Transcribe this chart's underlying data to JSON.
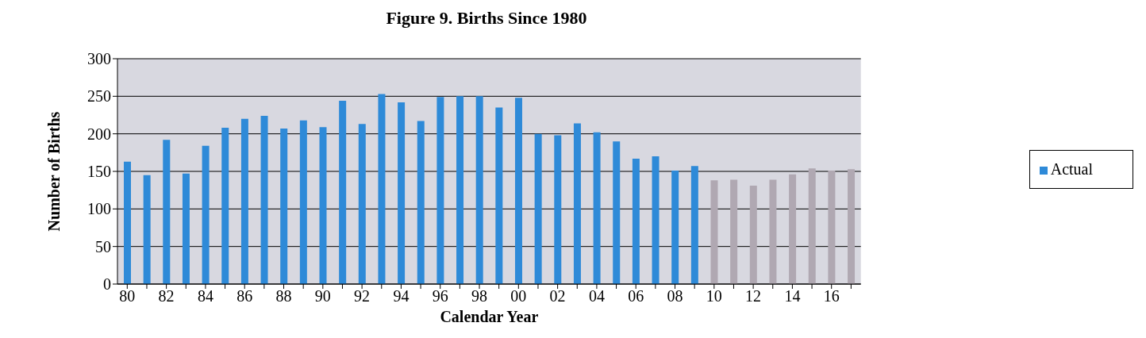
{
  "chart_data": {
    "type": "bar",
    "title": "Figure 9. Births Since 1980",
    "xlabel": "Calendar Year",
    "ylabel": "Number of Births",
    "categories": [
      "80",
      null,
      "82",
      null,
      "84",
      null,
      "86",
      null,
      "88",
      null,
      "90",
      null,
      "92",
      null,
      "94",
      null,
      "96",
      null,
      "98",
      null,
      "00",
      null,
      "02",
      null,
      "04",
      null,
      "06",
      null,
      "08",
      null,
      "10",
      null,
      "12",
      null,
      "14",
      null,
      "16",
      null
    ],
    "series": [
      {
        "name": "Actual",
        "color": "#2e8ad8",
        "values": [
          163,
          145,
          192,
          147,
          184,
          208,
          220,
          224,
          207,
          218,
          209,
          244,
          213,
          253,
          242,
          217,
          249,
          250,
          250,
          235,
          248,
          200,
          198,
          214,
          202,
          190,
          167,
          170,
          151,
          157,
          null,
          null,
          null,
          null,
          null,
          null,
          null,
          null
        ]
      },
      {
        "color": "#b0a8b2",
        "values": [
          null,
          null,
          null,
          null,
          null,
          null,
          null,
          null,
          null,
          null,
          null,
          null,
          null,
          null,
          null,
          null,
          null,
          null,
          null,
          null,
          null,
          null,
          null,
          null,
          null,
          null,
          null,
          null,
          null,
          null,
          138,
          139,
          131,
          139,
          146,
          154,
          151,
          153
        ]
      }
    ],
    "stacked": true,
    "ylim": [
      0,
      300
    ],
    "yticks": [
      0,
      50,
      100,
      150,
      200,
      250,
      300
    ],
    "grid": "y",
    "legend": "right"
  }
}
